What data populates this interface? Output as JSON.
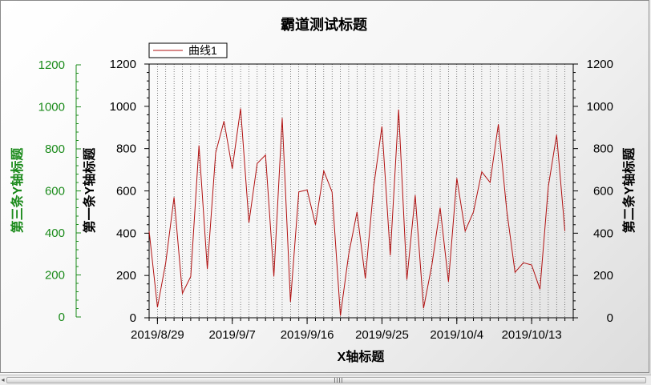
{
  "chart_data": {
    "type": "line",
    "title": "霸道测试标题",
    "xlabel": "X轴标题",
    "ylabel_left": "第一条Y轴标题",
    "ylabel_right": "第二条Y轴标题",
    "ylabel_third": "第三条Y轴标题",
    "ylim": [
      0,
      1200
    ],
    "yticks": [
      0,
      200,
      400,
      600,
      800,
      1000,
      1200
    ],
    "x_start": "2019-08-28",
    "x_end": "2019-10-18",
    "xtick_labels": [
      "2019/8/29",
      "2019/9/7",
      "2019/9/16",
      "2019/9/25",
      "2019/10/4",
      "2019/10/13"
    ],
    "xtick_dates": [
      "2019-08-29",
      "2019-09-07",
      "2019-09-16",
      "2019-09-25",
      "2019-10-04",
      "2019-10-13"
    ],
    "grid": "vertical-dotted",
    "legend_position": "top-left",
    "series": [
      {
        "name": "曲线1",
        "color": "#b01010",
        "x": [
          "2019-08-28",
          "2019-08-29",
          "2019-08-30",
          "2019-08-31",
          "2019-09-01",
          "2019-09-02",
          "2019-09-03",
          "2019-09-04",
          "2019-09-05",
          "2019-09-06",
          "2019-09-07",
          "2019-09-08",
          "2019-09-09",
          "2019-09-10",
          "2019-09-11",
          "2019-09-12",
          "2019-09-13",
          "2019-09-14",
          "2019-09-15",
          "2019-09-16",
          "2019-09-17",
          "2019-09-18",
          "2019-09-19",
          "2019-09-20",
          "2019-09-21",
          "2019-09-22",
          "2019-09-23",
          "2019-09-24",
          "2019-09-25",
          "2019-09-26",
          "2019-09-27",
          "2019-09-28",
          "2019-09-29",
          "2019-09-30",
          "2019-10-01",
          "2019-10-02",
          "2019-10-03",
          "2019-10-04",
          "2019-10-05",
          "2019-10-06",
          "2019-10-07",
          "2019-10-08",
          "2019-10-09",
          "2019-10-10",
          "2019-10-11",
          "2019-10-12",
          "2019-10-13",
          "2019-10-14",
          "2019-10-15",
          "2019-10-16",
          "2019-10-17"
        ],
        "values": [
          410,
          50,
          260,
          570,
          115,
          195,
          815,
          230,
          780,
          930,
          705,
          990,
          450,
          730,
          770,
          195,
          945,
          75,
          595,
          605,
          440,
          695,
          595,
          10,
          300,
          500,
          185,
          620,
          905,
          295,
          985,
          180,
          580,
          45,
          250,
          520,
          170,
          660,
          410,
          500,
          690,
          640,
          915,
          510,
          215,
          260,
          250,
          135,
          620,
          865,
          410
        ]
      }
    ]
  }
}
